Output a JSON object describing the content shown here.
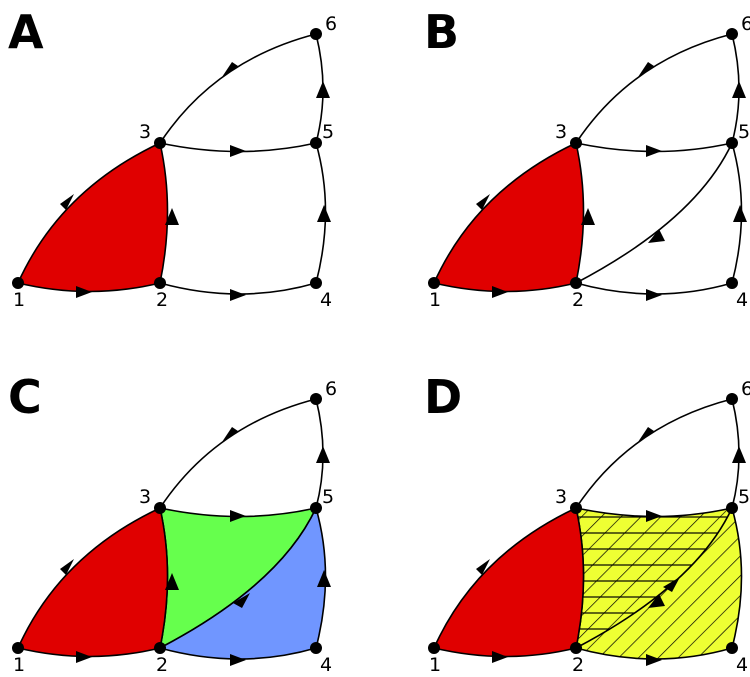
{
  "colors": {
    "red_face": "#e00000",
    "green_face": "#66ff4d",
    "blue_face": "#7096ff",
    "yellow_face": "#eeff33",
    "edge": "#000000",
    "background": "#ffffff"
  },
  "panels": [
    {
      "label": "A",
      "nodes": [
        "1",
        "2",
        "3",
        "4",
        "5",
        "6"
      ]
    },
    {
      "label": "B",
      "nodes": [
        "1",
        "2",
        "3",
        "4",
        "5",
        "6"
      ]
    },
    {
      "label": "C",
      "nodes": [
        "1",
        "2",
        "3",
        "4",
        "5",
        "6"
      ]
    },
    {
      "label": "D",
      "nodes": [
        "1",
        "2",
        "3",
        "4",
        "5",
        "6"
      ]
    }
  ]
}
